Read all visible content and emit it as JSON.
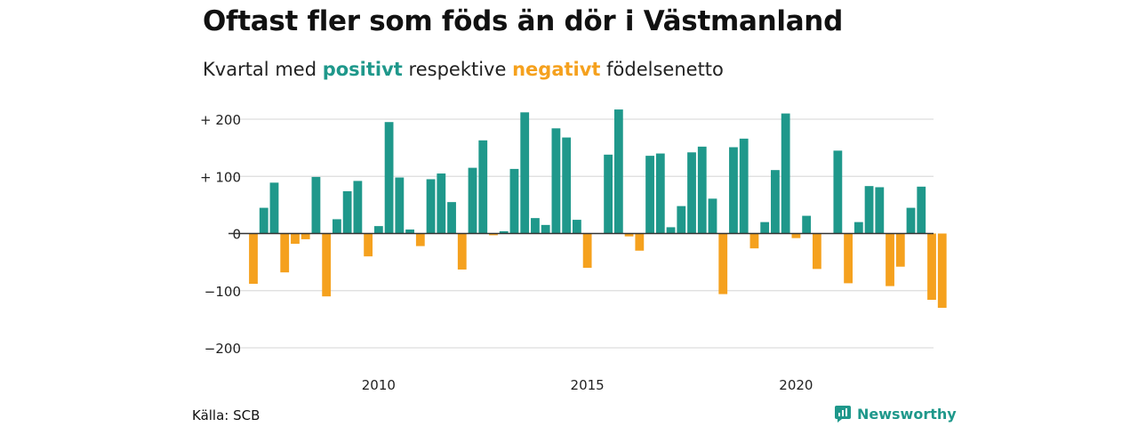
{
  "header": {
    "title": "Oftast fler som föds än dör i Västmanland",
    "subtitle_prefix": "Kvartal med",
    "subtitle_positive": "positivt",
    "subtitle_middle": "respektive",
    "subtitle_negative": "negativt",
    "subtitle_suffix": "födelsenetto"
  },
  "footer": {
    "source": "Källa: SCB",
    "brand": "Newsworthy"
  },
  "colors": {
    "positive": "#1f988b",
    "negative": "#f5a11e",
    "grid": "#dddddd",
    "zero_line": "#333333"
  },
  "icons": {
    "brand_icon": "newsworthy-logo-icon"
  },
  "chart_data": {
    "type": "bar",
    "title": "Oftast fler som föds än dör i Västmanland",
    "xlabel": "",
    "ylabel": "",
    "grid": true,
    "ylim": [
      -200,
      200
    ],
    "y_ticks": [
      200,
      100,
      0,
      -100,
      -200
    ],
    "y_tick_labels": [
      "+ 200",
      "+ 100",
      "0",
      "−100",
      "−200"
    ],
    "x_ticks": [
      2010,
      2015,
      2020
    ],
    "x_tick_labels": [
      "2010",
      "2015",
      "2020"
    ],
    "x_start": 2007.0,
    "quarter_step": 0.25,
    "values": [
      -88,
      45,
      89,
      -68,
      -18,
      -10,
      99,
      -110,
      25,
      74,
      92,
      -40,
      13,
      195,
      98,
      7,
      -22,
      95,
      105,
      55,
      -63,
      115,
      163,
      -3,
      4,
      113,
      212,
      27,
      15,
      184,
      168,
      24,
      -60,
      0,
      138,
      217,
      -5,
      -30,
      136,
      140,
      11,
      48,
      142,
      152,
      61,
      -106,
      151,
      166,
      -26,
      20,
      111,
      210,
      -8,
      31,
      -62,
      0,
      145,
      -87,
      20,
      83,
      81,
      -92,
      -58,
      45,
      82,
      -116,
      -130
    ]
  }
}
